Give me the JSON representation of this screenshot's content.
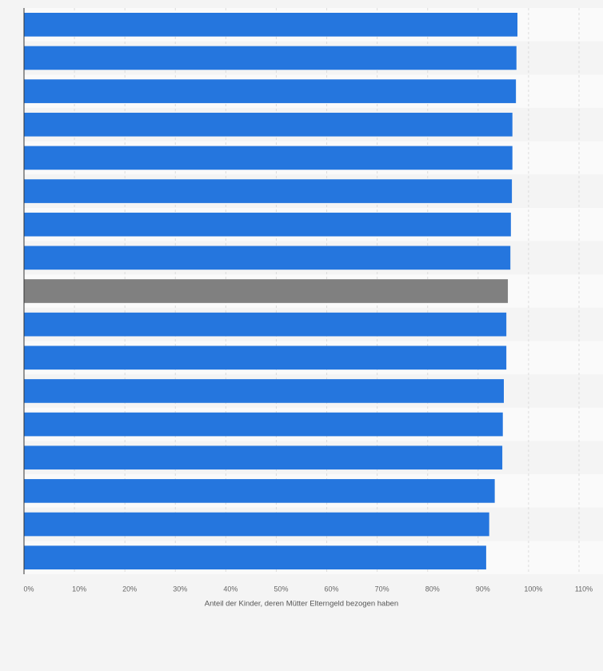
{
  "chart_data": {
    "type": "hbar",
    "x_label": "Anteil der Kinder, deren Mütter Elterngeld bezogen haben",
    "categories": [
      null,
      null,
      null,
      null,
      null,
      null,
      null,
      null,
      null,
      null,
      null,
      null,
      null,
      null,
      null,
      null,
      null
    ],
    "values": [
      97.8,
      97.6,
      97.5,
      96.8,
      96.8,
      96.7,
      96.5,
      96.4,
      95.9,
      95.6,
      95.6,
      95.1,
      94.9,
      94.8,
      93.3,
      92.2,
      91.6
    ],
    "colors": [
      "#2576de",
      "#2576de",
      "#2576de",
      "#2576de",
      "#2576de",
      "#2576de",
      "#2576de",
      "#2576de",
      "#808080",
      "#2576de",
      "#2576de",
      "#2576de",
      "#2576de",
      "#2576de",
      "#2576de",
      "#2576de",
      "#2576de"
    ],
    "xlim": [
      0,
      110
    ],
    "xticks": [
      {
        "value": 0,
        "label": "0%"
      },
      {
        "value": 10,
        "label": "10%"
      },
      {
        "value": 20,
        "label": "20%"
      },
      {
        "value": 30,
        "label": "30%"
      },
      {
        "value": 40,
        "label": "40%"
      },
      {
        "value": 50,
        "label": "50%"
      },
      {
        "value": 60,
        "label": "60%"
      },
      {
        "value": 70,
        "label": "70%"
      },
      {
        "value": 80,
        "label": "80%"
      },
      {
        "value": 90,
        "label": "90%"
      },
      {
        "value": 100,
        "label": "100%"
      },
      {
        "value": 110,
        "label": "110%"
      }
    ],
    "grid": true
  }
}
